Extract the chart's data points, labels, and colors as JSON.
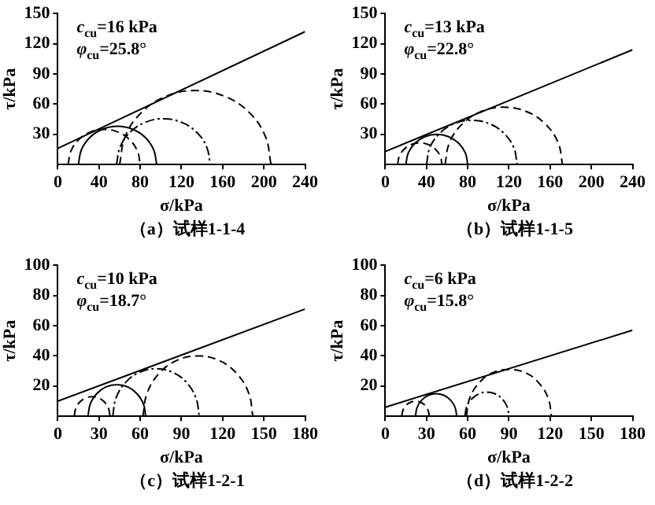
{
  "chart_data": [
    {
      "type": "line",
      "title": "（a）试样1-1-4",
      "xlabel": "σ/kPa",
      "ylabel": "τ/kPa",
      "xlim": [
        0,
        240
      ],
      "xticks": [
        0,
        40,
        80,
        120,
        160,
        200,
        240
      ],
      "ylim": [
        0,
        150
      ],
      "yticks": [
        30,
        60,
        90,
        120,
        150
      ],
      "grid": false,
      "legend": false,
      "marker": "none",
      "annotations": [
        "c$_{cu}$=16 kPa",
        "φ$_{cu}$=25.8°"
      ],
      "series": [
        {
          "color": "#000000",
          "line_style": "solid",
          "x": [
            0,
            240
          ],
          "values": [
            16,
            132
          ]
        },
        {
          "color": "#000000",
          "line_style": "solid",
          "x": [
            20,
            22.9,
            31.1,
            43.4,
            58,
            72.6,
            84.9,
            93.1,
            96
          ],
          "values": [
            0,
            14.6,
            26.9,
            35.1,
            38,
            35.1,
            26.9,
            14.6,
            0
          ]
        },
        {
          "color": "#000000",
          "line_style": "dashed",
          "x": [
            10,
            12.7,
            20.3,
            31.6,
            45,
            58.4,
            69.7,
            77.3,
            80
          ],
          "values": [
            0,
            13.4,
            24.7,
            32.3,
            35,
            32.3,
            24.7,
            13.4,
            0
          ]
        },
        {
          "color": "#000000",
          "line_style": "dashdot",
          "x": [
            57,
            60.5,
            70.3,
            85.1,
            102.5,
            119.9,
            134.7,
            144.5,
            148
          ],
          "values": [
            0,
            17.4,
            32.2,
            42,
            45.5,
            42,
            32.2,
            17.4,
            0
          ]
        },
        {
          "color": "#000000",
          "line_style": "dashed",
          "x": [
            60,
            65.6,
            81.5,
            105.3,
            133.5,
            161.7,
            185.5,
            201.4,
            207
          ],
          "values": [
            0,
            28.2,
            52,
            67.9,
            73.5,
            67.9,
            52,
            28.2,
            0
          ]
        }
      ]
    },
    {
      "type": "line",
      "title": "（b）试样1-1-5",
      "xlabel": "σ/kPa",
      "ylabel": "τ/kPa",
      "xlim": [
        0,
        240
      ],
      "xticks": [
        0,
        40,
        80,
        120,
        160,
        200,
        240
      ],
      "ylim": [
        0,
        150
      ],
      "yticks": [
        30,
        60,
        90,
        120,
        150
      ],
      "grid": false,
      "legend": false,
      "marker": "none",
      "annotations": [
        "c$_{cu}$=13 kPa",
        "φ$_{cu}$=22.8°"
      ],
      "series": [
        {
          "color": "#000000",
          "line_style": "solid",
          "x": [
            0,
            240
          ],
          "values": [
            13,
            114
          ]
        },
        {
          "color": "#000000",
          "line_style": "solid",
          "x": [
            20,
            22.3,
            28.8,
            38.5,
            50,
            61.5,
            71.2,
            77.7,
            80
          ],
          "values": [
            0,
            11.5,
            21.2,
            27.7,
            30,
            27.7,
            21.2,
            11.5,
            0
          ]
        },
        {
          "color": "#000000",
          "line_style": "dashed",
          "x": [
            12,
            13.6,
            18.3,
            25.3,
            33.5,
            41.7,
            48.7,
            53.4,
            55
          ],
          "values": [
            0,
            8.2,
            15.2,
            19.9,
            21.5,
            19.9,
            15.2,
            8.2,
            0
          ]
        },
        {
          "color": "#000000",
          "line_style": "dashdot",
          "x": [
            40,
            43.3,
            52.9,
            67.1,
            84,
            100.9,
            115.1,
            124.7,
            128
          ],
          "values": [
            0,
            16.9,
            31.1,
            40.7,
            44,
            40.7,
            31.1,
            16.9,
            0
          ]
        },
        {
          "color": "#000000",
          "line_style": "dashed",
          "x": [
            58,
            62.3,
            74.7,
            93.2,
            115,
            136.8,
            155.3,
            167.7,
            172
          ],
          "values": [
            0,
            21.8,
            40.3,
            52.7,
            57,
            52.7,
            40.3,
            21.8,
            0
          ]
        }
      ]
    },
    {
      "type": "line",
      "title": "（c）试样1-2-1",
      "xlabel": "σ/kPa",
      "ylabel": "τ/kPa",
      "xlim": [
        0,
        180
      ],
      "xticks": [
        0,
        30,
        60,
        90,
        120,
        150,
        180
      ],
      "ylim": [
        0,
        100
      ],
      "yticks": [
        20,
        40,
        60,
        80,
        100
      ],
      "grid": false,
      "legend": false,
      "marker": "none",
      "annotations": [
        "c$_{cu}$=10 kPa",
        "φ$_{cu}$=18.7°"
      ],
      "series": [
        {
          "color": "#000000",
          "line_style": "solid",
          "x": [
            0,
            180
          ],
          "values": [
            10,
            71
          ]
        },
        {
          "color": "#000000",
          "line_style": "solid",
          "x": [
            22,
            23.6,
            28.2,
            35,
            43,
            51,
            57.8,
            62.4,
            64
          ],
          "values": [
            0,
            8,
            14.8,
            19.4,
            21,
            19.4,
            14.8,
            8,
            0
          ]
        },
        {
          "color": "#000000",
          "line_style": "dashed",
          "x": [
            12,
            13,
            15.8,
            20,
            25,
            30,
            34.2,
            37,
            38
          ],
          "values": [
            0,
            5,
            9.2,
            12,
            13,
            12,
            9.2,
            5,
            0
          ]
        },
        {
          "color": "#000000",
          "line_style": "dashdot",
          "x": [
            40,
            42.4,
            49.2,
            59.4,
            71.5,
            83.6,
            93.8,
            100.6,
            103
          ],
          "values": [
            0,
            12.1,
            22.3,
            29.1,
            31.5,
            29.1,
            22.3,
            12.1,
            0
          ]
        },
        {
          "color": "#000000",
          "line_style": "dashed",
          "x": [
            62,
            65,
            73.7,
            86.7,
            102,
            117.3,
            130.3,
            139,
            142
          ],
          "values": [
            0,
            15.3,
            28.3,
            37,
            40,
            37,
            28.3,
            15.3,
            0
          ]
        }
      ]
    },
    {
      "type": "line",
      "title": "（d）试样1-2-2",
      "xlabel": "σ/kPa",
      "ylabel": "τ/kPa",
      "xlim": [
        0,
        180
      ],
      "xticks": [
        0,
        30,
        60,
        90,
        120,
        150,
        180
      ],
      "ylim": [
        0,
        100
      ],
      "yticks": [
        20,
        40,
        60,
        80,
        100
      ],
      "grid": false,
      "legend": false,
      "marker": "none",
      "annotations": [
        "c$_{cu}$=6 kPa",
        "φ$_{cu}$=15.8°"
      ],
      "series": [
        {
          "color": "#000000",
          "line_style": "solid",
          "x": [
            0,
            180
          ],
          "values": [
            6,
            57
          ]
        },
        {
          "color": "#000000",
          "line_style": "solid",
          "x": [
            22,
            23.1,
            26.4,
            31.3,
            37,
            42.7,
            47.6,
            50.9,
            52
          ],
          "values": [
            0,
            5.7,
            10.6,
            13.9,
            15,
            13.9,
            10.6,
            5.7,
            0
          ]
        },
        {
          "color": "#000000",
          "line_style": "dashed",
          "x": [
            12,
            12.8,
            14.9,
            18.2,
            22,
            25.8,
            29.1,
            31.2,
            32
          ],
          "values": [
            0,
            3.8,
            7.1,
            9.2,
            10,
            9.2,
            7.1,
            3.8,
            0
          ]
        },
        {
          "color": "#000000",
          "line_style": "dashdot",
          "x": [
            58,
            59.2,
            62.7,
            67.9,
            74,
            80.1,
            85.3,
            88.8,
            90
          ],
          "values": [
            0,
            6.1,
            11.3,
            14.8,
            16,
            14.8,
            11.3,
            6.1,
            0
          ]
        },
        {
          "color": "#000000",
          "line_style": "dashed",
          "x": [
            59,
            61.4,
            68.1,
            77.4,
            90,
            102.6,
            111.9,
            118.6,
            121
          ],
          "values": [
            0,
            11.9,
            21.9,
            28.6,
            31,
            28.6,
            21.9,
            11.9,
            0
          ]
        }
      ]
    }
  ]
}
